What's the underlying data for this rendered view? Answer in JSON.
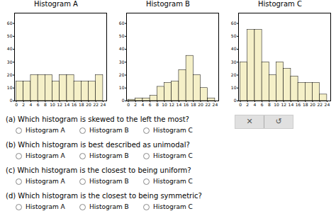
{
  "chart_data": [
    {
      "type": "histogram",
      "title": "Histogram A",
      "bins": [
        0,
        2,
        4,
        6,
        8,
        10,
        12,
        14,
        16,
        18,
        20,
        22,
        24
      ],
      "values": [
        15,
        15,
        20,
        20,
        20,
        15,
        20,
        20,
        15,
        15,
        15,
        20
      ],
      "color": "#f5f0c8",
      "xlim": [
        -0.5,
        25
      ],
      "ylim": [
        0,
        68
      ],
      "xticks": [
        0,
        2,
        4,
        6,
        8,
        10,
        12,
        14,
        16,
        18,
        20,
        22,
        24
      ],
      "yticks": [
        0,
        10,
        20,
        30,
        40,
        50,
        60
      ]
    },
    {
      "type": "histogram",
      "title": "Histogram B",
      "bins": [
        0,
        2,
        4,
        6,
        8,
        10,
        12,
        14,
        16,
        18,
        20,
        22,
        24
      ],
      "values": [
        1,
        2,
        2,
        4,
        11,
        14,
        15,
        24,
        35,
        20,
        10,
        2
      ],
      "color": "#f5f0c8",
      "xlim": [
        -0.5,
        25
      ],
      "ylim": [
        0,
        68
      ],
      "xticks": [
        0,
        2,
        4,
        6,
        8,
        10,
        12,
        14,
        16,
        18,
        20,
        22,
        24
      ],
      "yticks": [
        0,
        10,
        20,
        30,
        40,
        50,
        60
      ]
    },
    {
      "type": "histogram",
      "title": "Histogram C",
      "bins": [
        0,
        2,
        4,
        6,
        8,
        10,
        12,
        14,
        16,
        18,
        20,
        22,
        24
      ],
      "values": [
        30,
        55,
        55,
        30,
        20,
        30,
        25,
        19,
        14,
        14,
        14,
        5
      ],
      "color": "#f5f0c8",
      "xlim": [
        -0.5,
        25
      ],
      "ylim": [
        0,
        68
      ],
      "xticks": [
        0,
        2,
        4,
        6,
        8,
        10,
        12,
        14,
        16,
        18,
        20,
        22,
        24
      ],
      "yticks": [
        0,
        10,
        20,
        30,
        40,
        50,
        60
      ]
    }
  ],
  "annotations": [
    {
      "text": "(a) Which histogram is skewed to the left the most?",
      "options": [
        "Histogram A",
        "Histogram B",
        "Histogram C"
      ]
    },
    {
      "text": "(b) Which histogram is best described as unimodal?",
      "options": [
        "Histogram A",
        "Histogram B",
        "Histogram C"
      ]
    },
    {
      "text": "(c) Which histogram is the closest to being uniform?",
      "options": [
        "Histogram A",
        "Histogram B",
        "Histogram C"
      ]
    },
    {
      "text": "(d) Which histogram is the closest to being symmetric?",
      "options": [
        "Histogram A",
        "Histogram B",
        "Histogram C"
      ]
    },
    {
      "text": "✕"
    },
    {
      "text": "↺"
    }
  ]
}
